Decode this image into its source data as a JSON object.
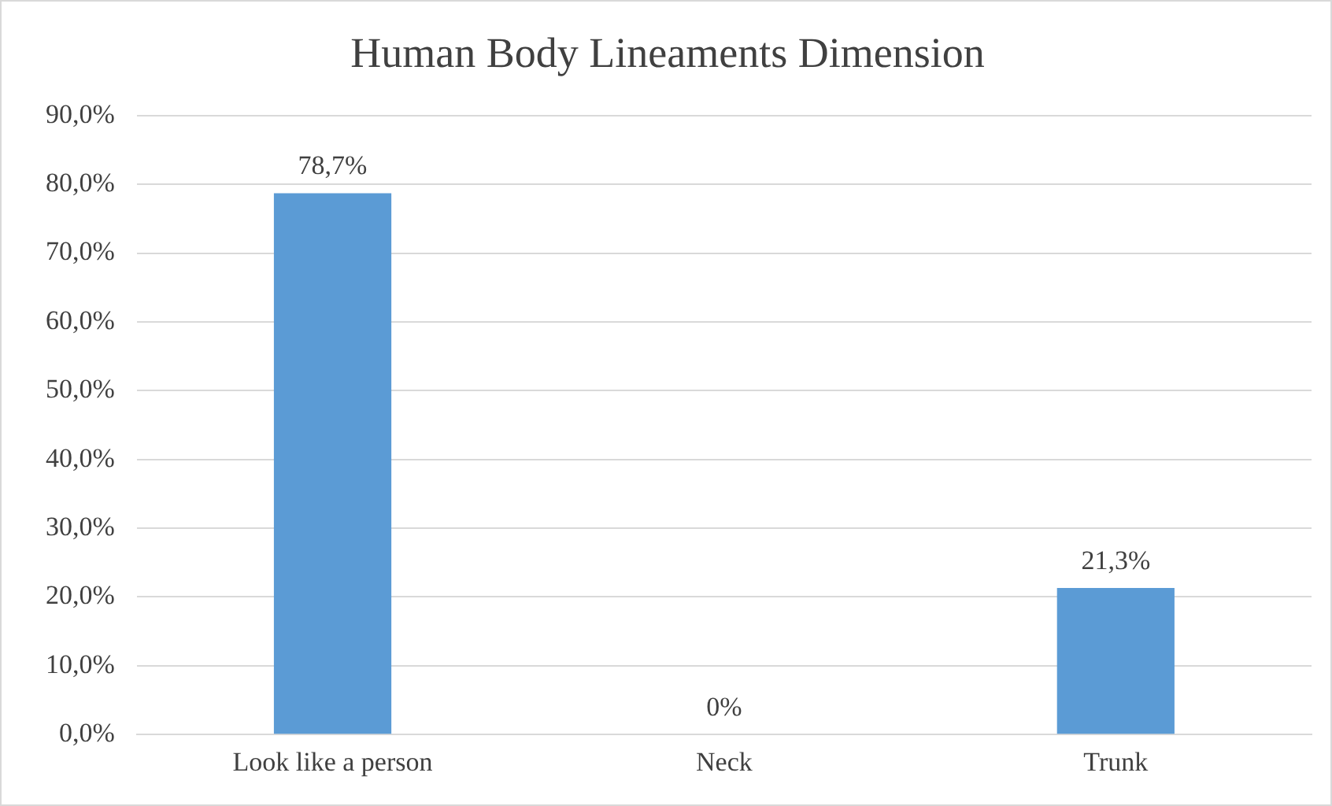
{
  "chart_data": {
    "type": "bar",
    "title": "Human Body Lineaments Dimension",
    "categories": [
      "Look like a person",
      "Neck",
      "Trunk"
    ],
    "values": [
      78.7,
      0,
      21.3
    ],
    "value_labels": [
      "78,7%",
      "0%",
      "21,3%"
    ],
    "color": "#5b9bd5",
    "ylim": [
      0,
      90
    ],
    "yticks": [
      {
        "value": 0,
        "label": "0,0%"
      },
      {
        "value": 10,
        "label": "10,0%"
      },
      {
        "value": 20,
        "label": "20,0%"
      },
      {
        "value": 30,
        "label": "30,0%"
      },
      {
        "value": 40,
        "label": "40,0%"
      },
      {
        "value": 50,
        "label": "50,0%"
      },
      {
        "value": 60,
        "label": "60,0%"
      },
      {
        "value": 70,
        "label": "70,0%"
      },
      {
        "value": 80,
        "label": "80,0%"
      },
      {
        "value": 90,
        "label": "90,0%"
      }
    ],
    "grid": "y",
    "legend": false
  }
}
